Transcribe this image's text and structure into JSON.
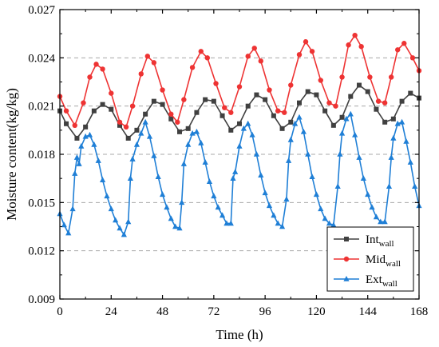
{
  "chart_data": {
    "type": "line",
    "xlabel": "Time (h)",
    "ylabel": "Moisture content(kg/kg)",
    "xlim": [
      0,
      168
    ],
    "ylim": [
      0.009,
      0.027
    ],
    "x_ticks": [
      "0",
      "24",
      "48",
      "72",
      "96",
      "120",
      "144",
      "168"
    ],
    "y_ticks": [
      "0.009",
      "0.012",
      "0.015",
      "0.018",
      "0.021",
      "0.024",
      "0.027"
    ],
    "grid": "horizontal-dashed",
    "legend_position": "bottom-right",
    "series": [
      {
        "name": "Int",
        "name_sub": "wall",
        "color": "#404040",
        "marker": "square",
        "points": [
          [
            0,
            0.0207
          ],
          [
            3,
            0.0199
          ],
          [
            8,
            0.019
          ],
          [
            12,
            0.0197
          ],
          [
            16,
            0.0207
          ],
          [
            20,
            0.0211
          ],
          [
            24,
            0.0208
          ],
          [
            28,
            0.0198
          ],
          [
            32,
            0.019
          ],
          [
            36,
            0.0195
          ],
          [
            40,
            0.0205
          ],
          [
            44,
            0.0213
          ],
          [
            48,
            0.0211
          ],
          [
            52,
            0.0202
          ],
          [
            56,
            0.0194
          ],
          [
            60,
            0.0196
          ],
          [
            64,
            0.0206
          ],
          [
            68,
            0.0214
          ],
          [
            72,
            0.0213
          ],
          [
            76,
            0.0204
          ],
          [
            80,
            0.0195
          ],
          [
            84,
            0.0199
          ],
          [
            88,
            0.021
          ],
          [
            92,
            0.0217
          ],
          [
            96,
            0.0214
          ],
          [
            100,
            0.0204
          ],
          [
            104,
            0.0196
          ],
          [
            108,
            0.02
          ],
          [
            112,
            0.0212
          ],
          [
            116,
            0.0219
          ],
          [
            120,
            0.0217
          ],
          [
            124,
            0.0207
          ],
          [
            128,
            0.0198
          ],
          [
            132,
            0.0203
          ],
          [
            136,
            0.0216
          ],
          [
            140,
            0.0223
          ],
          [
            144,
            0.0219
          ],
          [
            148,
            0.0208
          ],
          [
            152,
            0.02
          ],
          [
            156,
            0.0202
          ],
          [
            160,
            0.0213
          ],
          [
            164,
            0.0218
          ],
          [
            168,
            0.0215
          ]
        ]
      },
      {
        "name": "Mid",
        "name_sub": "wall",
        "color": "#ee3333",
        "marker": "circle",
        "points": [
          [
            0,
            0.0216
          ],
          [
            3,
            0.0207
          ],
          [
            7,
            0.0198
          ],
          [
            11,
            0.0212
          ],
          [
            14,
            0.0228
          ],
          [
            17,
            0.0236
          ],
          [
            20,
            0.0233
          ],
          [
            24,
            0.0218
          ],
          [
            28,
            0.02
          ],
          [
            31,
            0.0197
          ],
          [
            34,
            0.021
          ],
          [
            38,
            0.023
          ],
          [
            41,
            0.0241
          ],
          [
            44,
            0.0237
          ],
          [
            48,
            0.022
          ],
          [
            52,
            0.0205
          ],
          [
            55,
            0.02
          ],
          [
            58,
            0.0214
          ],
          [
            62,
            0.0234
          ],
          [
            66,
            0.0244
          ],
          [
            69,
            0.024
          ],
          [
            73,
            0.0224
          ],
          [
            77,
            0.0209
          ],
          [
            80,
            0.0206
          ],
          [
            84,
            0.0222
          ],
          [
            88,
            0.0241
          ],
          [
            91,
            0.0246
          ],
          [
            94,
            0.0238
          ],
          [
            98,
            0.022
          ],
          [
            102,
            0.0207
          ],
          [
            105,
            0.0206
          ],
          [
            108,
            0.0223
          ],
          [
            112,
            0.0242
          ],
          [
            115,
            0.025
          ],
          [
            118,
            0.0244
          ],
          [
            122,
            0.0226
          ],
          [
            126,
            0.0212
          ],
          [
            129,
            0.021
          ],
          [
            132,
            0.0228
          ],
          [
            135,
            0.0248
          ],
          [
            138,
            0.0254
          ],
          [
            141,
            0.0247
          ],
          [
            145,
            0.0228
          ],
          [
            149,
            0.0213
          ],
          [
            152,
            0.0212
          ],
          [
            155,
            0.0228
          ],
          [
            158,
            0.0245
          ],
          [
            161,
            0.0249
          ],
          [
            165,
            0.024
          ],
          [
            168,
            0.0232
          ]
        ]
      },
      {
        "name": "Ext",
        "name_sub": "wall",
        "color": "#1f7fd6",
        "marker": "triangle",
        "points": [
          [
            0,
            0.0143
          ],
          [
            2,
            0.0136
          ],
          [
            4,
            0.0131
          ],
          [
            6,
            0.0146
          ],
          [
            7,
            0.0168
          ],
          [
            8,
            0.0178
          ],
          [
            9,
            0.0174
          ],
          [
            10,
            0.0185
          ],
          [
            12,
            0.0191
          ],
          [
            14,
            0.0192
          ],
          [
            16,
            0.0186
          ],
          [
            18,
            0.0176
          ],
          [
            20,
            0.0164
          ],
          [
            22,
            0.0154
          ],
          [
            24,
            0.0146
          ],
          [
            26,
            0.0139
          ],
          [
            28,
            0.0134
          ],
          [
            30,
            0.013
          ],
          [
            32,
            0.0138
          ],
          [
            33,
            0.0165
          ],
          [
            34,
            0.0177
          ],
          [
            36,
            0.0186
          ],
          [
            38,
            0.0193
          ],
          [
            40,
            0.02
          ],
          [
            42,
            0.0191
          ],
          [
            44,
            0.0179
          ],
          [
            46,
            0.0166
          ],
          [
            48,
            0.0155
          ],
          [
            50,
            0.0147
          ],
          [
            52,
            0.014
          ],
          [
            54,
            0.0135
          ],
          [
            56,
            0.0134
          ],
          [
            57,
            0.015
          ],
          [
            58,
            0.0174
          ],
          [
            60,
            0.0186
          ],
          [
            62,
            0.0193
          ],
          [
            64,
            0.0194
          ],
          [
            66,
            0.0187
          ],
          [
            68,
            0.0175
          ],
          [
            70,
            0.0163
          ],
          [
            72,
            0.0154
          ],
          [
            74,
            0.0147
          ],
          [
            76,
            0.0142
          ],
          [
            78,
            0.0137
          ],
          [
            80,
            0.0137
          ],
          [
            81,
            0.0165
          ],
          [
            82,
            0.0169
          ],
          [
            84,
            0.0185
          ],
          [
            86,
            0.0196
          ],
          [
            88,
            0.0199
          ],
          [
            90,
            0.0192
          ],
          [
            92,
            0.018
          ],
          [
            94,
            0.0167
          ],
          [
            96,
            0.0156
          ],
          [
            98,
            0.0148
          ],
          [
            100,
            0.0142
          ],
          [
            102,
            0.0137
          ],
          [
            104,
            0.0135
          ],
          [
            106,
            0.0152
          ],
          [
            107,
            0.0176
          ],
          [
            108,
            0.0189
          ],
          [
            110,
            0.0199
          ],
          [
            112,
            0.0203
          ],
          [
            114,
            0.0194
          ],
          [
            116,
            0.018
          ],
          [
            118,
            0.0166
          ],
          [
            120,
            0.0155
          ],
          [
            122,
            0.0146
          ],
          [
            124,
            0.014
          ],
          [
            126,
            0.0137
          ],
          [
            128,
            0.0136
          ],
          [
            130,
            0.016
          ],
          [
            131,
            0.018
          ],
          [
            132,
            0.0193
          ],
          [
            134,
            0.0202
          ],
          [
            136,
            0.0205
          ],
          [
            138,
            0.0192
          ],
          [
            140,
            0.0178
          ],
          [
            142,
            0.0165
          ],
          [
            144,
            0.0155
          ],
          [
            146,
            0.0147
          ],
          [
            148,
            0.0141
          ],
          [
            150,
            0.0138
          ],
          [
            152,
            0.0138
          ],
          [
            154,
            0.016
          ],
          [
            155,
            0.0178
          ],
          [
            156,
            0.019
          ],
          [
            158,
            0.0199
          ],
          [
            160,
            0.02
          ],
          [
            162,
            0.0188
          ],
          [
            164,
            0.0175
          ],
          [
            166,
            0.016
          ],
          [
            168,
            0.0148
          ]
        ]
      }
    ]
  }
}
